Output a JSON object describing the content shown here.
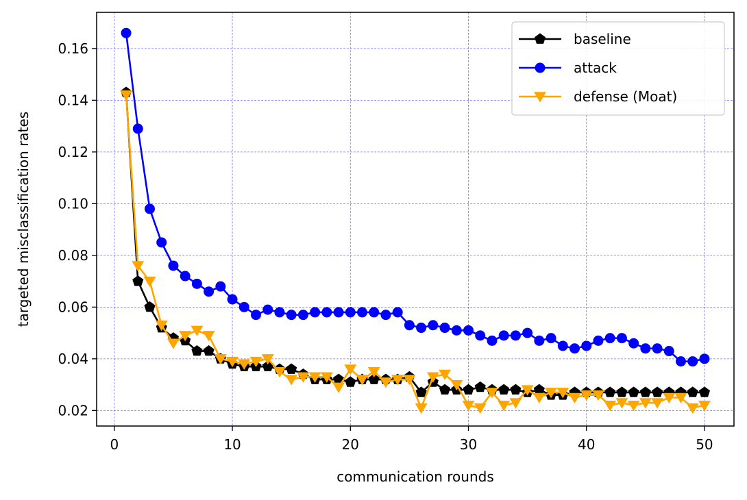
{
  "chart_data": {
    "type": "line",
    "title": "",
    "xlabel": "communication rounds",
    "ylabel": "targeted misclassification rates",
    "xlim": [
      -1.5,
      52.5
    ],
    "ylim": [
      0.014,
      0.174
    ],
    "xticks": [
      0,
      10,
      20,
      30,
      40,
      50
    ],
    "xtick_labels": [
      "0",
      "10",
      "20",
      "30",
      "40",
      "50"
    ],
    "yticks": [
      0.02,
      0.04,
      0.06,
      0.08,
      0.1,
      0.12,
      0.14,
      0.16
    ],
    "ytick_labels": [
      "0.02",
      "0.04",
      "0.06",
      "0.08",
      "0.10",
      "0.12",
      "0.14",
      "0.16"
    ],
    "grid": true,
    "legend_position": "top-right",
    "x": [
      1,
      2,
      3,
      4,
      5,
      6,
      7,
      8,
      9,
      10,
      11,
      12,
      13,
      14,
      15,
      16,
      17,
      18,
      19,
      20,
      21,
      22,
      23,
      24,
      25,
      26,
      27,
      28,
      29,
      30,
      31,
      32,
      33,
      34,
      35,
      36,
      37,
      38,
      39,
      40,
      41,
      42,
      43,
      44,
      45,
      46,
      47,
      48,
      49,
      50
    ],
    "series": [
      {
        "name": "baseline",
        "color": "#000000",
        "marker": "pentagon",
        "values": [
          0.143,
          0.07,
          0.06,
          0.052,
          0.048,
          0.047,
          0.043,
          0.043,
          0.04,
          0.038,
          0.037,
          0.037,
          0.037,
          0.036,
          0.036,
          0.034,
          0.032,
          0.032,
          0.032,
          0.031,
          0.032,
          0.032,
          0.032,
          0.032,
          0.033,
          0.027,
          0.031,
          0.028,
          0.028,
          0.028,
          0.029,
          0.028,
          0.028,
          0.028,
          0.027,
          0.028,
          0.026,
          0.026,
          0.027,
          0.027,
          0.027,
          0.027,
          0.027,
          0.027,
          0.027,
          0.027,
          0.027,
          0.027,
          0.027,
          0.027
        ]
      },
      {
        "name": "attack",
        "color": "#0000ff",
        "marker": "circle",
        "values": [
          0.166,
          0.129,
          0.098,
          0.085,
          0.076,
          0.072,
          0.069,
          0.066,
          0.068,
          0.063,
          0.06,
          0.057,
          0.059,
          0.058,
          0.057,
          0.057,
          0.058,
          0.058,
          0.058,
          0.058,
          0.058,
          0.058,
          0.057,
          0.058,
          0.053,
          0.052,
          0.053,
          0.052,
          0.051,
          0.051,
          0.049,
          0.047,
          0.049,
          0.049,
          0.05,
          0.047,
          0.048,
          0.045,
          0.044,
          0.045,
          0.047,
          0.048,
          0.048,
          0.046,
          0.044,
          0.044,
          0.043,
          0.039,
          0.039,
          0.04
        ]
      },
      {
        "name": "defense (Moat)",
        "color": "#ffa500",
        "marker": "triangle-down",
        "values": [
          0.142,
          0.076,
          0.07,
          0.053,
          0.046,
          0.049,
          0.051,
          0.049,
          0.04,
          0.039,
          0.038,
          0.039,
          0.04,
          0.035,
          0.032,
          0.033,
          0.033,
          0.033,
          0.029,
          0.036,
          0.032,
          0.035,
          0.031,
          0.032,
          0.032,
          0.021,
          0.033,
          0.034,
          0.03,
          0.022,
          0.021,
          0.027,
          0.022,
          0.023,
          0.028,
          0.025,
          0.027,
          0.027,
          0.025,
          0.026,
          0.026,
          0.022,
          0.023,
          0.022,
          0.023,
          0.023,
          0.025,
          0.025,
          0.021,
          0.022
        ]
      }
    ]
  }
}
